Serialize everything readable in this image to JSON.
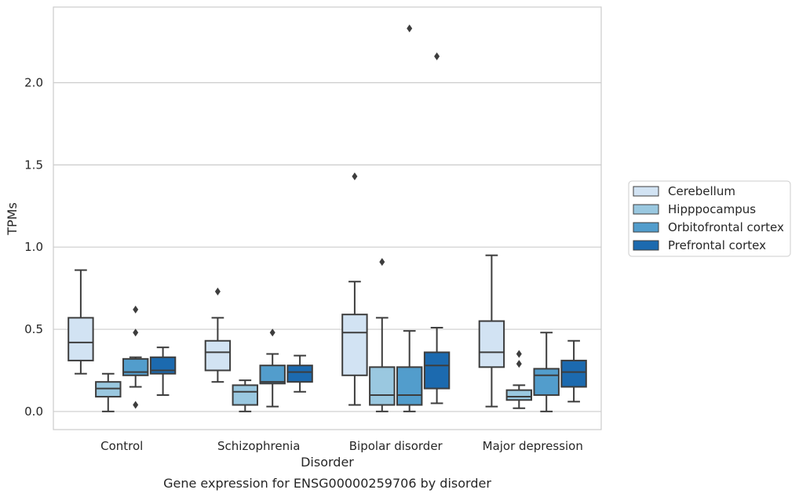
{
  "chart_data": {
    "type": "box",
    "title": "",
    "caption": "Gene expression for ENSG00000259706 by disorder",
    "xlabel": "Disorder",
    "ylabel": "TPMs",
    "categories": [
      "Control",
      "Schizophrenia",
      "Bipolar disorder",
      "Major depression"
    ],
    "yticks": [
      "0.0",
      "0.5",
      "1.0",
      "1.5",
      "2.0"
    ],
    "ylim": [
      -0.11,
      2.46
    ],
    "grid": "horizontal",
    "legend_position": "right",
    "series": [
      {
        "name": "Cerebellum",
        "color": "#d2e3f3",
        "boxes": [
          {
            "whislo": 0.23,
            "q1": 0.31,
            "med": 0.42,
            "q3": 0.57,
            "whishi": 0.86,
            "fliers": []
          },
          {
            "whislo": 0.18,
            "q1": 0.25,
            "med": 0.36,
            "q3": 0.43,
            "whishi": 0.57,
            "fliers": [
              0.73
            ]
          },
          {
            "whislo": 0.04,
            "q1": 0.22,
            "med": 0.48,
            "q3": 0.59,
            "whishi": 0.79,
            "fliers": [
              1.43
            ]
          },
          {
            "whislo": 0.03,
            "q1": 0.27,
            "med": 0.36,
            "q3": 0.55,
            "whishi": 0.95,
            "fliers": []
          }
        ]
      },
      {
        "name": "Hipppocampus",
        "color": "#9ac8e0",
        "boxes": [
          {
            "whislo": 0.0,
            "q1": 0.09,
            "med": 0.14,
            "q3": 0.18,
            "whishi": 0.23,
            "fliers": []
          },
          {
            "whislo": 0.0,
            "q1": 0.04,
            "med": 0.12,
            "q3": 0.16,
            "whishi": 0.19,
            "fliers": []
          },
          {
            "whislo": 0.0,
            "q1": 0.04,
            "med": 0.1,
            "q3": 0.27,
            "whishi": 0.57,
            "fliers": [
              0.91
            ]
          },
          {
            "whislo": 0.02,
            "q1": 0.07,
            "med": 0.09,
            "q3": 0.13,
            "whishi": 0.16,
            "fliers": [
              0.29,
              0.35
            ]
          }
        ]
      },
      {
        "name": "Orbitofrontal cortex",
        "color": "#529dcc",
        "boxes": [
          {
            "whislo": 0.15,
            "q1": 0.22,
            "med": 0.24,
            "q3": 0.32,
            "whishi": 0.33,
            "fliers": [
              0.04,
              0.48,
              0.62
            ]
          },
          {
            "whislo": 0.03,
            "q1": 0.17,
            "med": 0.18,
            "q3": 0.28,
            "whishi": 0.35,
            "fliers": [
              0.48
            ]
          },
          {
            "whislo": 0.0,
            "q1": 0.04,
            "med": 0.1,
            "q3": 0.27,
            "whishi": 0.49,
            "fliers": [
              2.33
            ]
          },
          {
            "whislo": 0.0,
            "q1": 0.1,
            "med": 0.22,
            "q3": 0.26,
            "whishi": 0.48,
            "fliers": []
          }
        ]
      },
      {
        "name": "Prefrontal cortex",
        "color": "#1c6aaf",
        "boxes": [
          {
            "whislo": 0.1,
            "q1": 0.23,
            "med": 0.25,
            "q3": 0.33,
            "whishi": 0.39,
            "fliers": []
          },
          {
            "whislo": 0.12,
            "q1": 0.18,
            "med": 0.24,
            "q3": 0.28,
            "whishi": 0.34,
            "fliers": []
          },
          {
            "whislo": 0.05,
            "q1": 0.14,
            "med": 0.28,
            "q3": 0.36,
            "whishi": 0.51,
            "fliers": [
              2.16
            ]
          },
          {
            "whislo": 0.06,
            "q1": 0.15,
            "med": 0.24,
            "q3": 0.31,
            "whishi": 0.43,
            "fliers": []
          }
        ]
      }
    ]
  }
}
